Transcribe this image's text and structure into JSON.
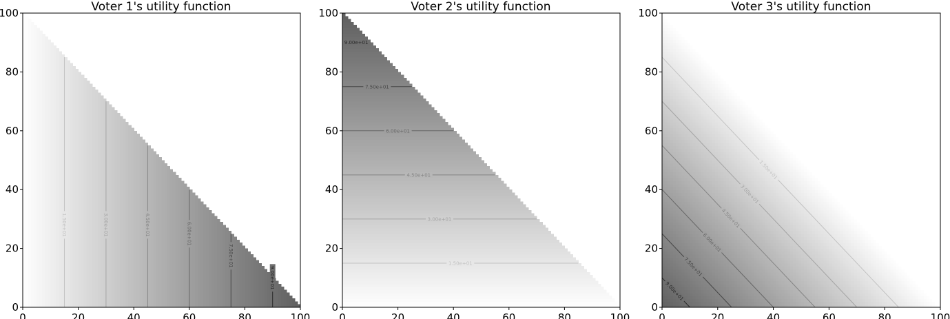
{
  "chart_data": [
    {
      "type": "heatmap",
      "title": "Voter 1's utility function",
      "colormap": "greys",
      "utility": "x",
      "domain": "x + y <= 100",
      "xlim": [
        0,
        100
      ],
      "ylim": [
        0,
        100
      ],
      "xticks": [
        "0",
        "20",
        "40",
        "60",
        "80",
        "100"
      ],
      "yticks": [
        "0",
        "20",
        "40",
        "60",
        "80",
        "100"
      ],
      "contour_levels": [
        15,
        30,
        45,
        60,
        75,
        90
      ],
      "contour_labels": [
        "1.50e+01",
        "3.00e+01",
        "4.50e+01",
        "6.00e+01",
        "7.50e+01",
        "9.00e+01"
      ]
    },
    {
      "type": "heatmap",
      "title": "Voter 2's utility function",
      "colormap": "greys",
      "utility": "y",
      "domain": "x + y <= 100",
      "xlim": [
        0,
        100
      ],
      "ylim": [
        0,
        100
      ],
      "xticks": [
        "0",
        "20",
        "40",
        "60",
        "80",
        "100"
      ],
      "yticks": [
        "0",
        "20",
        "40",
        "60",
        "80",
        "100"
      ],
      "contour_levels": [
        15,
        30,
        45,
        60,
        75,
        90
      ],
      "contour_labels": [
        "1.50e+01",
        "3.00e+01",
        "4.50e+01",
        "6.00e+01",
        "7.50e+01",
        "9.00e+01"
      ]
    },
    {
      "type": "heatmap",
      "title": "Voter 3's utility function",
      "colormap": "greys",
      "utility": "100 - x - y",
      "domain": "x + y <= 100",
      "xlim": [
        0,
        100
      ],
      "ylim": [
        0,
        100
      ],
      "xticks": [
        "0",
        "20",
        "40",
        "60",
        "80",
        "100"
      ],
      "yticks": [
        "0",
        "20",
        "40",
        "60",
        "80",
        "100"
      ],
      "contour_levels": [
        15,
        30,
        45,
        60,
        75,
        90
      ],
      "contour_labels": [
        "1.50e+01",
        "3.00e+01",
        "4.50e+01",
        "6.00e+01",
        "7.50e+01",
        "9.00e+01"
      ]
    }
  ]
}
